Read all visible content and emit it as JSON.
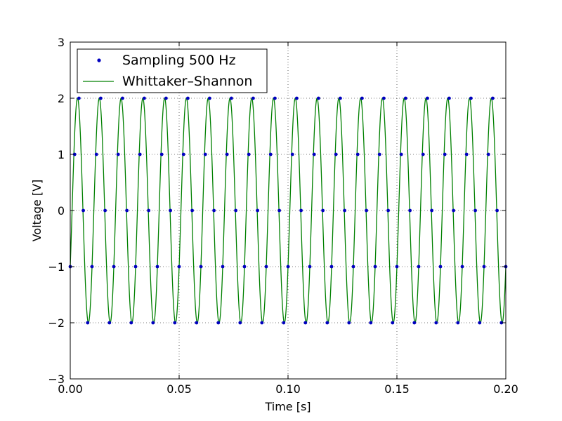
{
  "chart_data": {
    "type": "line",
    "title": "",
    "xlabel": "Time [s]",
    "ylabel": "Voltage [V]",
    "xlim": [
      0.0,
      0.2
    ],
    "ylim": [
      -3,
      3
    ],
    "x_ticks": [
      0.0,
      0.05,
      0.1,
      0.15,
      0.2
    ],
    "x_tick_labels": [
      "0.00",
      "0.05",
      "0.10",
      "0.15",
      "0.20"
    ],
    "y_ticks": [
      -3,
      -2,
      -1,
      0,
      1,
      2,
      3
    ],
    "y_tick_labels": [
      "−3",
      "−2",
      "−1",
      "0",
      "1",
      "2",
      "3"
    ],
    "grid": true,
    "legend_position": "top-left",
    "legend": [
      "Sampling 500 Hz",
      "Whittaker–Shannon"
    ],
    "signal": {
      "function": "2*sin(2*pi*100*t + phase)",
      "amplitude": 2,
      "frequency_hz": 100,
      "phase_rad": -0.5236
    },
    "series": [
      {
        "name": "Sampling 500 Hz",
        "kind": "scatter",
        "color": "#0000bf",
        "sample_rate_hz": 500,
        "x": [
          0,
          0.002,
          0.004,
          0.006,
          0.008,
          0.01,
          0.012,
          0.014,
          0.016,
          0.018,
          0.02,
          0.022,
          0.024,
          0.026,
          0.028,
          0.03,
          0.032,
          0.034,
          0.036,
          0.038,
          0.04,
          0.042,
          0.044,
          0.046,
          0.048,
          0.05,
          0.052,
          0.054,
          0.056,
          0.058,
          0.06,
          0.062,
          0.064,
          0.066,
          0.068,
          0.07,
          0.072,
          0.074,
          0.076,
          0.078,
          0.08,
          0.082,
          0.084,
          0.086,
          0.088,
          0.09,
          0.092,
          0.094,
          0.096,
          0.098,
          0.1,
          0.102,
          0.104,
          0.106,
          0.108,
          0.11,
          0.112,
          0.114,
          0.116,
          0.118,
          0.12,
          0.122,
          0.124,
          0.126,
          0.128,
          0.13,
          0.132,
          0.134,
          0.136,
          0.138,
          0.14,
          0.142,
          0.144,
          0.146,
          0.148,
          0.15,
          0.152,
          0.154,
          0.156,
          0.158,
          0.16,
          0.162,
          0.164,
          0.166,
          0.168,
          0.17,
          0.172,
          0.174,
          0.176,
          0.178,
          0.18,
          0.182,
          0.184,
          0.186,
          0.188,
          0.19,
          0.192,
          0.194,
          0.196,
          0.198,
          0.2
        ],
        "y": [
          -1.0,
          1.0,
          2.0,
          0.0,
          -2.0,
          -1.0,
          1.0,
          2.0,
          0.0,
          -2.0,
          -1.0,
          1.0,
          2.0,
          0.0,
          -2.0,
          -1.0,
          1.0,
          2.0,
          0.0,
          -2.0,
          -1.0,
          1.0,
          2.0,
          0.0,
          -2.0,
          -1.0,
          1.0,
          2.0,
          0.0,
          -2.0,
          -1.0,
          1.0,
          2.0,
          0.0,
          -2.0,
          -1.0,
          1.0,
          2.0,
          0.0,
          -2.0,
          -1.0,
          1.0,
          2.0,
          0.0,
          -2.0,
          -1.0,
          1.0,
          2.0,
          0.0,
          -2.0,
          -1.0,
          1.0,
          2.0,
          0.0,
          -2.0,
          -1.0,
          1.0,
          2.0,
          0.0,
          -2.0,
          -1.0,
          1.0,
          2.0,
          0.0,
          -2.0,
          -1.0,
          1.0,
          2.0,
          0.0,
          -2.0,
          -1.0,
          1.0,
          2.0,
          0.0,
          -2.0,
          -1.0,
          1.0,
          2.0,
          0.0,
          -2.0,
          -1.0,
          1.0,
          2.0,
          0.0,
          -2.0,
          -1.0,
          1.0,
          2.0,
          0.0,
          -2.0,
          -1.0,
          1.0,
          2.0,
          0.0,
          -2.0,
          -1.0,
          1.0,
          2.0,
          0.0,
          -2.0,
          -1.0
        ]
      },
      {
        "name": "Whittaker–Shannon",
        "kind": "line",
        "color": "#008000"
      }
    ]
  }
}
